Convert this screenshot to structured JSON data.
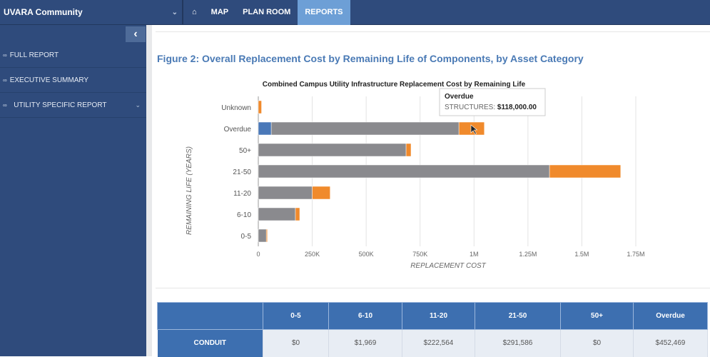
{
  "header": {
    "app_name": "UVARA Community",
    "nav": [
      {
        "label": "home-icon"
      },
      {
        "label": "MAP"
      },
      {
        "label": "PLAN ROOM"
      },
      {
        "label": "REPORTS",
        "active": true
      }
    ]
  },
  "sidebar": {
    "items": [
      {
        "label": "FULL REPORT"
      },
      {
        "label": "EXECUTIVE SUMMARY"
      },
      {
        "label": "UTILITY SPECIFIC REPORT",
        "has_submenu": true
      }
    ]
  },
  "main": {
    "figure_title": "Figure 2: Overall Replacement Cost by Remaining Life of Components, by Asset Category"
  },
  "chart_data": {
    "type": "bar",
    "orientation": "horizontal",
    "stacked": true,
    "title": "Combined Campus Utility Infrastructure Replacement Cost by Remaining Life",
    "xlabel": "REPLACEMENT COST",
    "ylabel": "REMAINING LIFE (YEARS)",
    "categories": [
      "Unknown",
      "Overdue",
      "50+",
      "21-50",
      "11-20",
      "6-10",
      "0-5"
    ],
    "xlim": [
      0,
      1750000
    ],
    "xticks": [
      "0",
      "250K",
      "500K",
      "750K",
      "1M",
      "1.25M",
      "1.5M",
      "1.75M"
    ],
    "grid": true,
    "series": [
      {
        "color": "#4a78b8",
        "values": [
          0,
          60000,
          0,
          0,
          0,
          0,
          0
        ]
      },
      {
        "color": "#8a8a8e",
        "values": [
          0,
          870000,
          685000,
          1350000,
          250000,
          172000,
          37000
        ]
      },
      {
        "name": "STRUCTURES",
        "color": "#f08a2c",
        "values": [
          15000,
          118000,
          23000,
          330000,
          83000,
          20000,
          5000
        ]
      }
    ],
    "tooltip": {
      "title": "Overdue",
      "label": "STRUCTURES:",
      "value": "$118,000.00"
    }
  },
  "table": {
    "headers": [
      "",
      "0-5",
      "6-10",
      "11-20",
      "21-50",
      "50+",
      "Overdue"
    ],
    "rows": [
      {
        "name": "CONDUIT",
        "values": [
          "$0",
          "$1,969",
          "$222,564",
          "$291,586",
          "$0",
          "$452,469"
        ]
      }
    ]
  }
}
